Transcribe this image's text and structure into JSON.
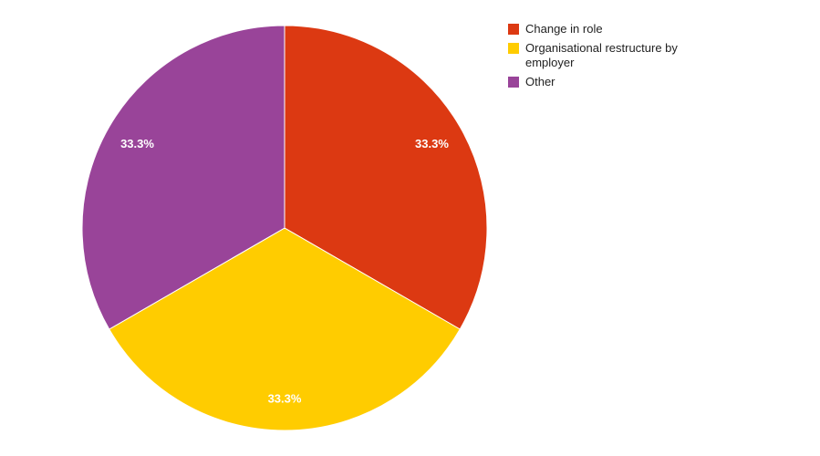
{
  "chart_data": {
    "type": "pie",
    "categories": [
      "Change in role",
      "Organisational restructure by employer",
      "Other"
    ],
    "values": [
      33.3,
      33.3,
      33.3
    ],
    "data_labels": [
      "33.3%",
      "33.3%",
      "33.3%"
    ],
    "colors": [
      "#dc3912",
      "#ffcc00",
      "#990099"
    ],
    "title": "",
    "legend_position": "top-right"
  },
  "legend": {
    "items": [
      {
        "label": "Change in role",
        "color": "#dc3912"
      },
      {
        "label": "Organisational restructure by employer",
        "color": "#ffcc00"
      },
      {
        "label": "Other",
        "color": "#994499"
      }
    ]
  }
}
